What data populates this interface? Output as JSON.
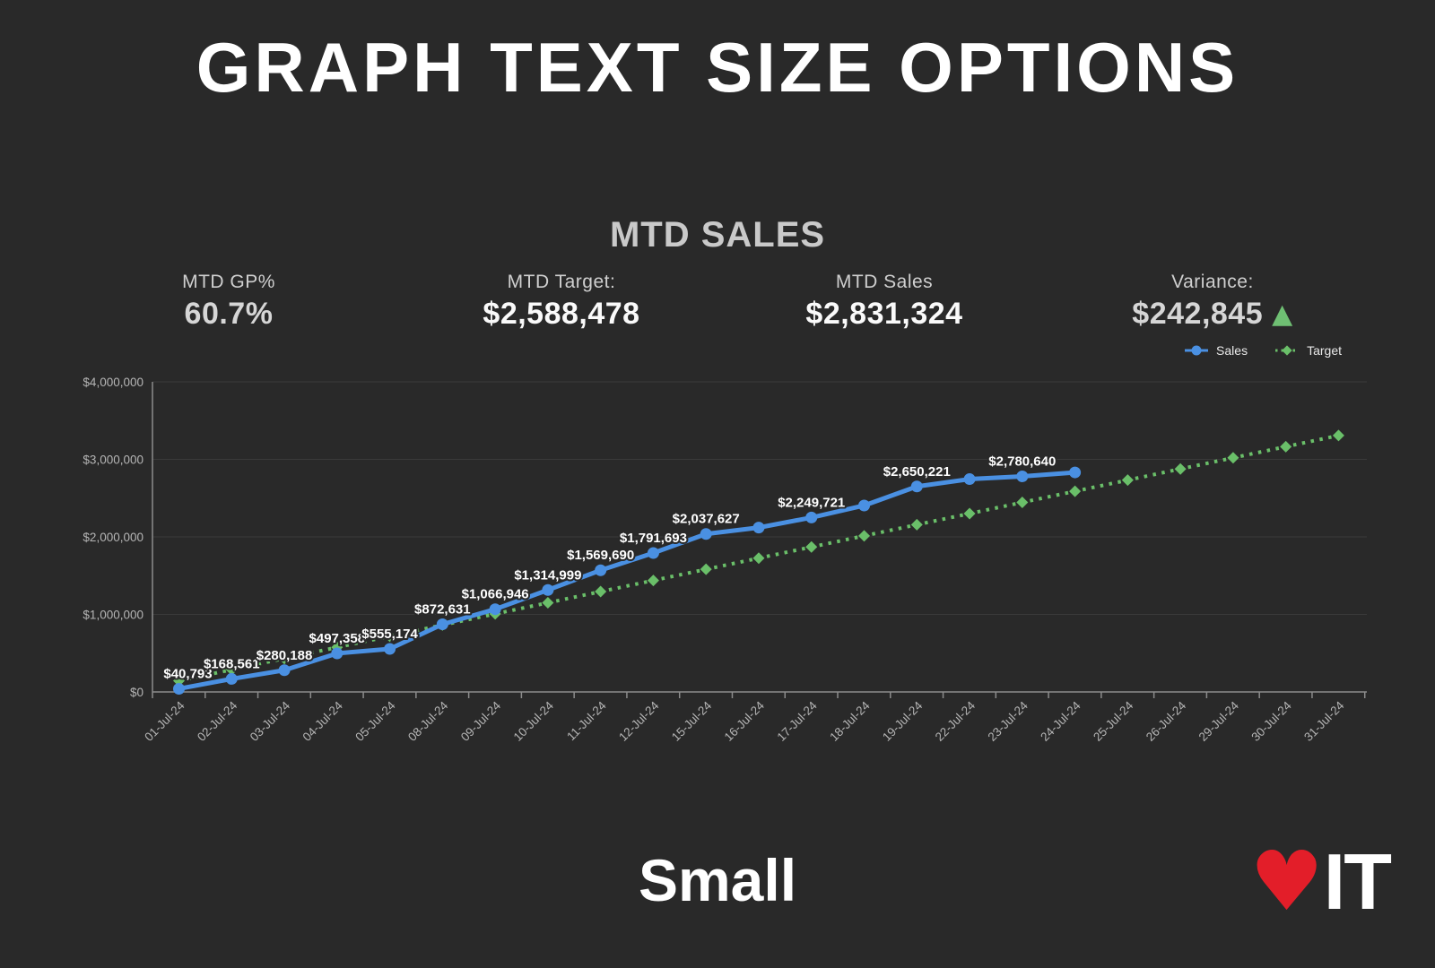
{
  "page": {
    "title": "GRAPH TEXT SIZE OPTIONS",
    "size_label": "Small",
    "background": "#292929"
  },
  "logo": {
    "heart_glyph": "♥",
    "heart_color": "#e31e29",
    "text": "IT"
  },
  "kpis": [
    {
      "label": "MTD GP%",
      "value": "60.7%"
    },
    {
      "label": "MTD Target:",
      "value": "$2,588,478"
    },
    {
      "label": "MTD Sales",
      "value": "$2,831,324"
    },
    {
      "label": "Variance:",
      "value": "$242,845",
      "trend": "up",
      "trend_glyph": "▲",
      "trend_color": "#6fbf73"
    }
  ],
  "legend": [
    {
      "name": "Sales",
      "color": "#4a90e2"
    },
    {
      "name": "Target",
      "color": "#6abf69"
    }
  ],
  "chart_data": {
    "type": "line",
    "title": "MTD SALES",
    "x": [
      "01-Jul-24",
      "02-Jul-24",
      "03-Jul-24",
      "04-Jul-24",
      "05-Jul-24",
      "08-Jul-24",
      "09-Jul-24",
      "10-Jul-24",
      "11-Jul-24",
      "12-Jul-24",
      "15-Jul-24",
      "16-Jul-24",
      "17-Jul-24",
      "18-Jul-24",
      "19-Jul-24",
      "22-Jul-24",
      "23-Jul-24",
      "24-Jul-24",
      "25-Jul-24",
      "26-Jul-24",
      "29-Jul-24",
      "30-Jul-24",
      "31-Jul-24"
    ],
    "series": [
      {
        "name": "Sales",
        "color": "#4a90e2",
        "style": "solid",
        "marker": "circle",
        "values": [
          40793,
          168561,
          280188,
          497358,
          555174,
          872631,
          1066946,
          1314999,
          1569690,
          1791693,
          2037627,
          2120000,
          2249721,
          2405000,
          2650221,
          2745000,
          2780640,
          2831324,
          null,
          null,
          null,
          null,
          null
        ],
        "labels": [
          "$40,793",
          "$168,561",
          "$280,188",
          "$497,358",
          "$555,174",
          "$872,631",
          "$1,066,946",
          "$1,314,999",
          "$1,569,690",
          "$1,791,693",
          "$2,037,627",
          null,
          "$2,249,721",
          null,
          "$2,650,221",
          null,
          "$2,780,640",
          null,
          null,
          null,
          null,
          null,
          null
        ]
      },
      {
        "name": "Target",
        "color": "#6abf69",
        "style": "dotted",
        "marker": "diamond",
        "values": [
          143804,
          287609,
          431413,
          575217,
          719022,
          862826,
          1006630,
          1150435,
          1294239,
          1438043,
          1581848,
          1725652,
          1869456,
          2013261,
          2157065,
          2300869,
          2444674,
          2588478,
          2732282,
          2876086,
          3019891,
          3163695,
          3307500
        ]
      }
    ],
    "ylim": [
      0,
      4000000
    ],
    "yticks": [
      "$0",
      "$1,000,000",
      "$2,000,000",
      "$3,000,000",
      "$4,000,000"
    ],
    "grid": true,
    "legend_position": "top-right",
    "axis_color": "#8c8c8c",
    "grid_color": "#3a3a3a",
    "tick_label_color": "#b5b5b5",
    "data_label_color": "#ffffff"
  }
}
